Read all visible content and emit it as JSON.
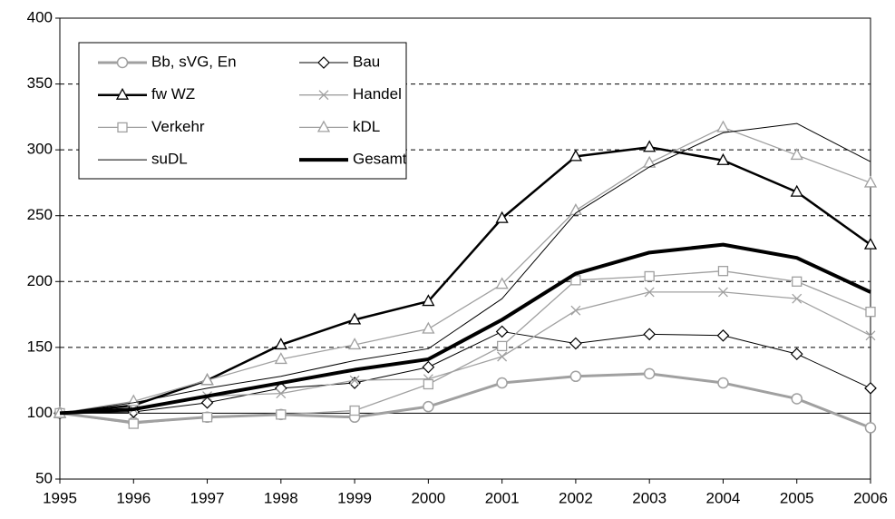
{
  "chart_data": {
    "type": "line",
    "x": [
      1995,
      1996,
      1997,
      1998,
      1999,
      2000,
      2001,
      2002,
      2003,
      2004,
      2005,
      2006
    ],
    "xlim": [
      1995,
      2006
    ],
    "xticks": [
      1995,
      1996,
      1997,
      1998,
      1999,
      2000,
      2001,
      2002,
      2003,
      2004,
      2005,
      2006
    ],
    "ylim": [
      50,
      400
    ],
    "yticks": [
      50,
      100,
      150,
      200,
      250,
      300,
      350,
      400
    ],
    "grid": true,
    "grid_style": "dashed",
    "reference_line": 100,
    "legend": "upper left",
    "series": [
      {
        "name": "Bb, sVG, En",
        "color": "#a0a0a0",
        "width": 3,
        "marker": "circle",
        "values": [
          100,
          93,
          97,
          99,
          97,
          105,
          123,
          128,
          130,
          123,
          111,
          89
        ]
      },
      {
        "name": "Bau",
        "color": "#000000",
        "width": 1,
        "marker": "diamond",
        "values": [
          100,
          101,
          108,
          119,
          123,
          135,
          162,
          153,
          160,
          159,
          145,
          119
        ]
      },
      {
        "name": "fw WZ",
        "color": "#000000",
        "width": 2.5,
        "marker": "triangle",
        "values": [
          100,
          106,
          125,
          152,
          171,
          185,
          248,
          295,
          302,
          292,
          268,
          228
        ]
      },
      {
        "name": "Handel",
        "color": "#a0a0a0",
        "width": 1.3,
        "marker": "x",
        "values": [
          100,
          103,
          113,
          115,
          125,
          126,
          143,
          178,
          192,
          192,
          187,
          159
        ]
      },
      {
        "name": "Verkehr",
        "color": "#a0a0a0",
        "width": 1.3,
        "marker": "square",
        "values": [
          100,
          92,
          97,
          99,
          102,
          122,
          151,
          201,
          204,
          208,
          200,
          177
        ]
      },
      {
        "name": "kDL",
        "color": "#a0a0a0",
        "width": 1.3,
        "marker": "triangle",
        "values": [
          100,
          109,
          125,
          141,
          152,
          164,
          198,
          254,
          290,
          317,
          296,
          275
        ]
      },
      {
        "name": "suDL",
        "color": "#000000",
        "width": 1,
        "marker": "none",
        "values": [
          100,
          108,
          119,
          128,
          140,
          149,
          187,
          252,
          287,
          313,
          320,
          291
        ]
      },
      {
        "name": "Gesamt",
        "color": "#000000",
        "width": 4,
        "marker": "none",
        "values": [
          100,
          103,
          113,
          123,
          133,
          141,
          171,
          206,
          222,
          228,
          218,
          192
        ]
      }
    ]
  }
}
